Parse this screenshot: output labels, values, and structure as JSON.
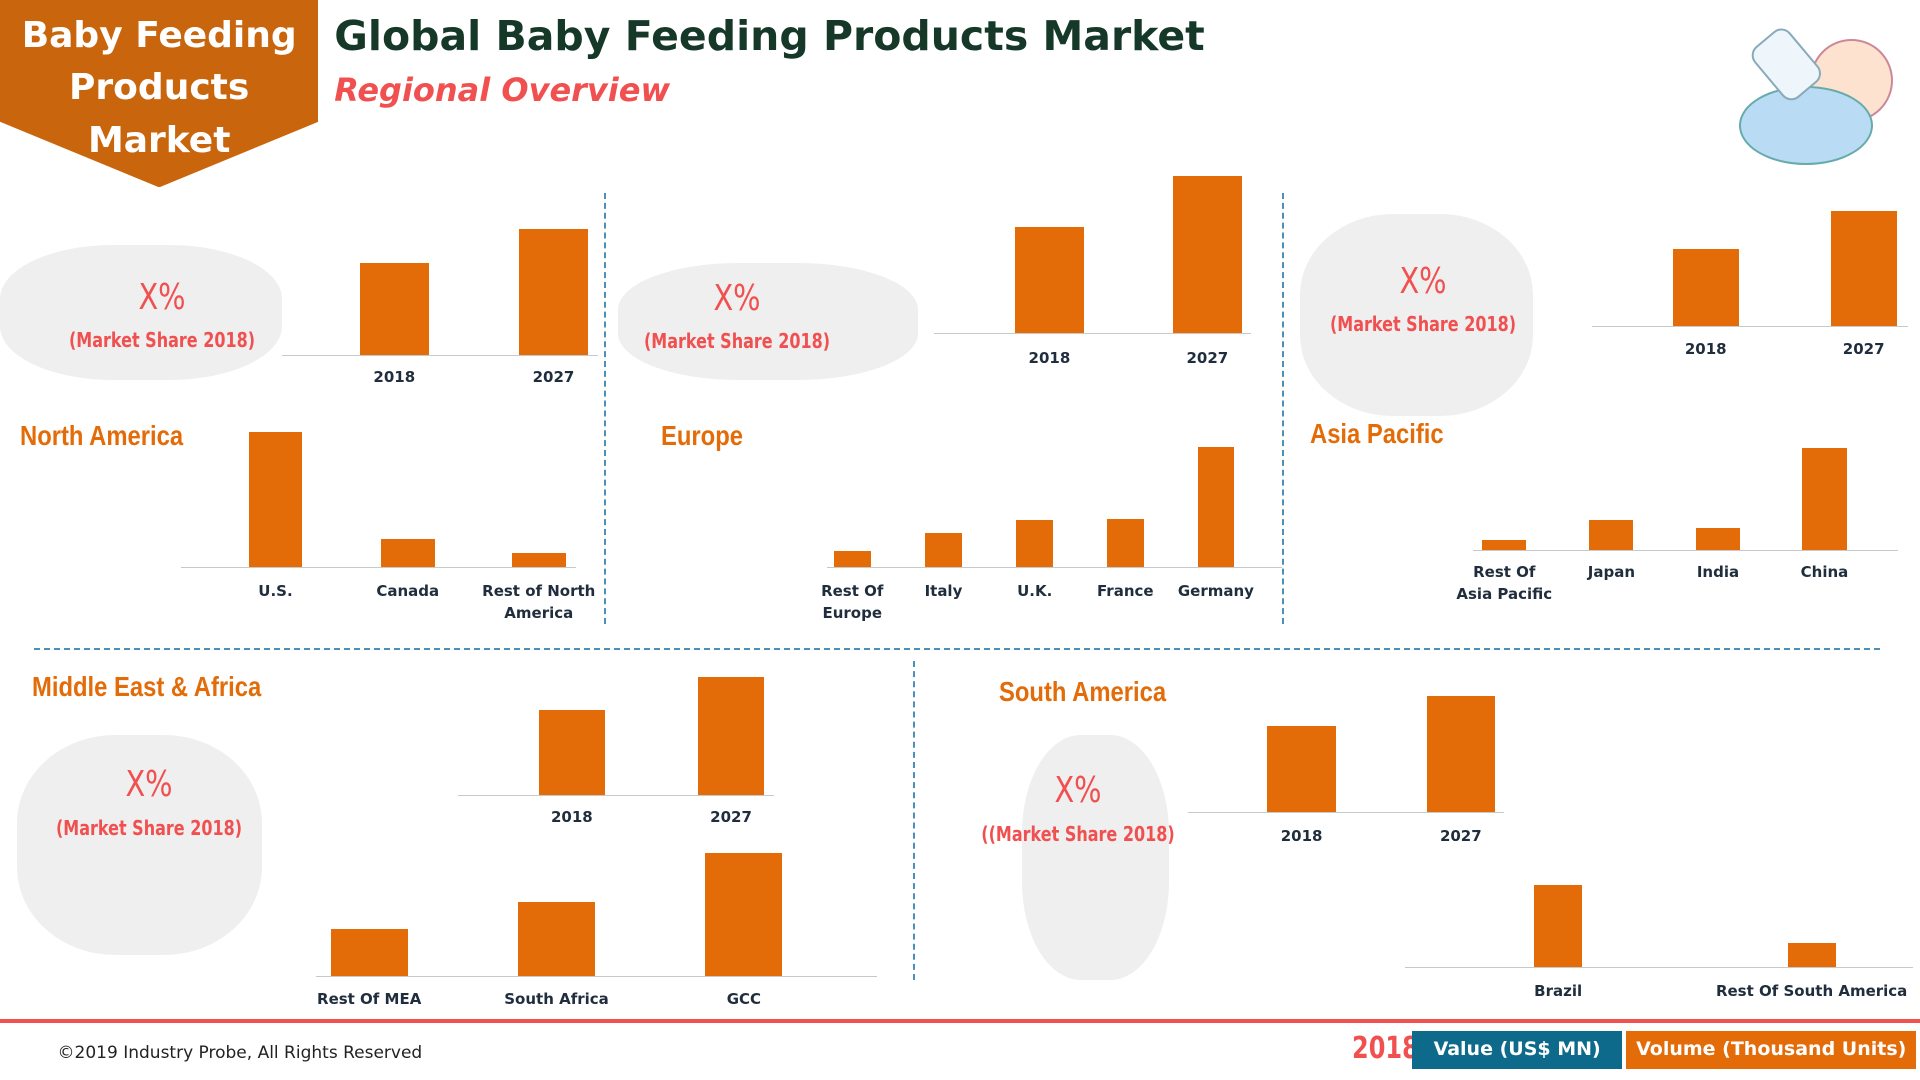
{
  "header": {
    "badge": [
      "Baby Feeding",
      "Products",
      "Market"
    ],
    "title": "Global Baby Feeding Products Market",
    "subtitle": "Regional Overview"
  },
  "regions": [
    {
      "name": "North America",
      "share_value": "X%",
      "share_label": "(Market Share 2018)"
    },
    {
      "name": "Europe",
      "share_value": "X%",
      "share_label": "(Market Share 2018)"
    },
    {
      "name": "Asia Pacific",
      "share_value": "X%",
      "share_label": "(Market Share 2018)"
    },
    {
      "name": "Middle East & Africa",
      "share_value": "X%",
      "share_label": "(Market Share 2018)"
    },
    {
      "name": "South America",
      "share_value": "X%",
      "share_label": "((Market Share 2018)"
    }
  ],
  "chart_data": [
    {
      "type": "bar",
      "categories": [
        "2018",
        "2027"
      ],
      "values": [
        75,
        103
      ],
      "color": "#e36c09",
      "ylim": [
        0,
        130
      ]
    },
    {
      "type": "bar",
      "categories": [
        "U.S.",
        "Canada",
        "Rest of North America"
      ],
      "values": [
        110,
        23,
        11
      ],
      "color": "#e36c09",
      "ylim": [
        0,
        130
      ]
    },
    {
      "type": "bar",
      "categories": [
        "2018",
        "2027"
      ],
      "values": [
        87,
        128
      ],
      "color": "#e36c09",
      "ylim": [
        0,
        130
      ]
    },
    {
      "type": "bar",
      "categories": [
        "Rest Of Europe",
        "Italy",
        "U.K.",
        "France",
        "Germany"
      ],
      "values": [
        13,
        28,
        38,
        39,
        98
      ],
      "color": "#e36c09",
      "ylim": [
        0,
        130
      ]
    },
    {
      "type": "bar",
      "categories": [
        "2018",
        "2027"
      ],
      "values": [
        63,
        94
      ],
      "color": "#e36c09",
      "ylim": [
        0,
        130
      ]
    },
    {
      "type": "bar",
      "categories": [
        "Rest Of Asia Pacific",
        "Japan",
        "India",
        "China"
      ],
      "values": [
        8,
        24,
        18,
        83
      ],
      "color": "#e36c09",
      "ylim": [
        0,
        130
      ]
    },
    {
      "type": "bar",
      "categories": [
        "2018",
        "2027"
      ],
      "values": [
        69,
        96
      ],
      "color": "#e36c09",
      "ylim": [
        0,
        130
      ]
    },
    {
      "type": "bar",
      "categories": [
        "Rest Of MEA",
        "South Africa",
        "GCC"
      ],
      "values": [
        38,
        60,
        100
      ],
      "color": "#e36c09",
      "ylim": [
        0,
        130
      ]
    },
    {
      "type": "bar",
      "categories": [
        "2018",
        "2027"
      ],
      "values": [
        70,
        95
      ],
      "color": "#e36c09",
      "ylim": [
        0,
        130
      ]
    },
    {
      "type": "bar",
      "categories": [
        "Brazil",
        "Rest Of South America"
      ],
      "values": [
        67,
        20
      ],
      "color": "#e36c09",
      "ylim": [
        0,
        130
      ]
    }
  ],
  "footer": {
    "copyright": "©2019 Industry Probe, All Rights Reserved",
    "legend_year": "2018",
    "legend_items": [
      "Value (US$ MN)",
      "Volume (Thousand Units)"
    ]
  }
}
